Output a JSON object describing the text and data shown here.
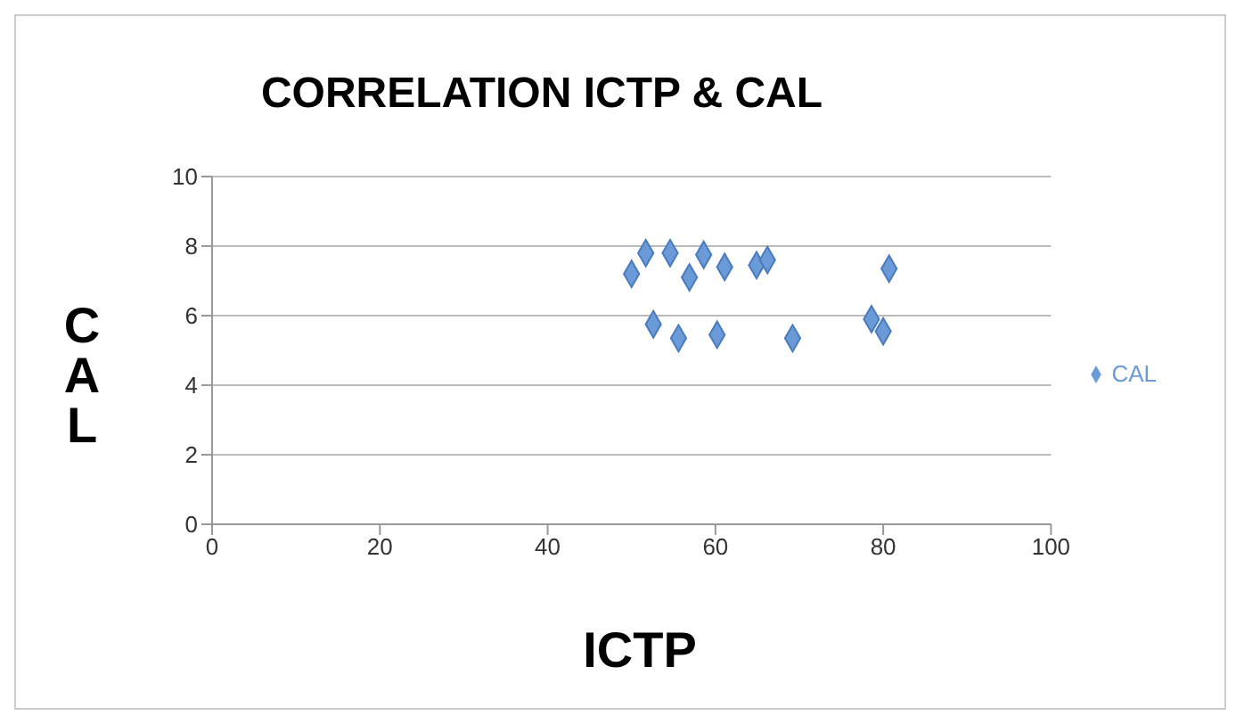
{
  "chart_data": {
    "type": "scatter",
    "title": "CORRELATION ICTP & CAL",
    "xlabel": "ICTP",
    "ylabel": "CAL",
    "x": [
      50.0,
      51.7,
      54.6,
      56.9,
      58.6,
      61.1,
      64.9,
      66.2,
      80.7,
      52.6,
      55.6,
      60.2,
      69.2,
      78.6,
      80.0
    ],
    "series": [
      {
        "name": "CAL",
        "color": "#6a9ad8",
        "values": [
          7.2,
          7.8,
          7.8,
          7.1,
          7.75,
          7.4,
          7.45,
          7.6,
          7.35,
          5.75,
          5.35,
          5.45,
          5.35,
          5.9,
          5.55
        ]
      }
    ],
    "xlim": [
      0,
      100
    ],
    "xticks": [
      0,
      20,
      40,
      60,
      80,
      100
    ],
    "ylim": [
      0,
      10
    ],
    "yticks": [
      0,
      2,
      4,
      6,
      8,
      10
    ],
    "grid": "y",
    "legend": "right",
    "marker": "diamond"
  }
}
